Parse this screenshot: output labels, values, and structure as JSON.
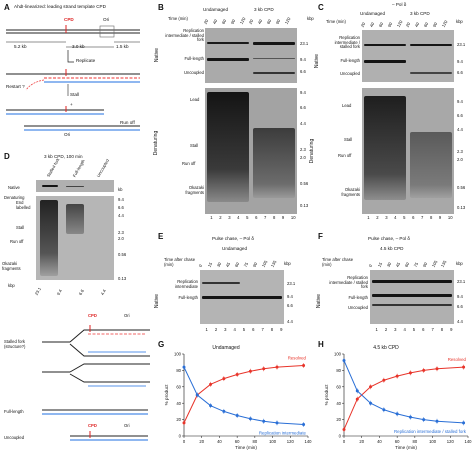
{
  "panel_a": {
    "letter": "A",
    "title": "AhdI-linearized: leading strand template CPD",
    "cpd": "CPD",
    "ori": "Ori",
    "sizes": [
      "5.2 kb",
      "3.0 kb",
      "1.5 kb"
    ],
    "replicate": "Replicate",
    "restart": "Restart ?",
    "stall": "Stall",
    "plus": "+",
    "runoff": "Run off",
    "ori2": "Ori"
  },
  "panel_b": {
    "letter": "B",
    "groups": [
      "Undamaged",
      "3 kb CPD"
    ],
    "time_label": "Time (min)",
    "times": [
      "20",
      "40",
      "60",
      "90",
      "120",
      "20",
      "40",
      "60",
      "90",
      "120"
    ],
    "native_labels": [
      "Replication intermediate / stalled fork",
      "Full-length",
      "Uncoupled"
    ],
    "denat_labels": [
      "Lead",
      "Stall",
      "Run off",
      "Okazaki fragments"
    ],
    "kb_title": "kbp",
    "kb_native": [
      "23.1",
      "9.4",
      "6.6"
    ],
    "kb_denat": [
      "9.4",
      "6.6",
      "4.4",
      "2.3",
      "2.0",
      "0.56",
      "0.13"
    ],
    "side_native": "Native",
    "side_denat": "Denaturing",
    "lanes": [
      "1",
      "2",
      "3",
      "4",
      "5",
      "6",
      "7",
      "8",
      "9",
      "10"
    ]
  },
  "panel_c": {
    "letter": "C",
    "header": "– Pol δ",
    "groups": [
      "Undamaged",
      "3 kb CPD"
    ],
    "time_label": "Time (min)",
    "times": [
      "20",
      "40",
      "60",
      "90",
      "120",
      "20",
      "40",
      "60",
      "90",
      "120"
    ],
    "native_labels": [
      "Replication intermediate / stalled fork",
      "Full-length",
      "Uncoupled"
    ],
    "denat_labels": [
      "Lead",
      "Stall",
      "Run off",
      "Okazaki fragments"
    ],
    "kb_title": "kbp",
    "kb_native": [
      "23.1",
      "9.4",
      "6.6"
    ],
    "kb_denat": [
      "9.4",
      "6.6",
      "4.4",
      "2.3",
      "2.0",
      "0.56",
      "0.13"
    ],
    "side_native": "Native",
    "side_denat": "Denaturing",
    "lanes": [
      "1",
      "2",
      "3",
      "4",
      "5",
      "6",
      "7",
      "8",
      "9",
      "10"
    ]
  },
  "panel_d": {
    "letter": "D",
    "title": "3 kb CPD, 100 min",
    "cols": [
      "Stalled fork",
      "Full-length",
      "Uncoupled"
    ],
    "native": "Native",
    "denaturing": "Denaturing",
    "end_labelled": "End labelled",
    "labels": [
      "Stall",
      "Run off",
      "Okazaki fragments"
    ],
    "kb_title": "kb",
    "kb": [
      "9.4",
      "6.6",
      "4.4",
      "2.3",
      "2.0",
      "0.56",
      "0.13"
    ],
    "kbp_title": "kbp",
    "bottom_kb": [
      "23.1",
      "9.4",
      "6.6",
      "4.4"
    ]
  },
  "panel_d_schematic": {
    "stalled": "Stalled fork (structure?)",
    "full_length": "Full-length",
    "uncoupled": "Uncoupled",
    "cpd": "CPD",
    "ori": "Ori"
  },
  "panel_e": {
    "letter": "E",
    "header": "Pulse chase, – Pol δ",
    "group": "Undamaged",
    "time_label": "Time after chase (min)",
    "times": [
      "0",
      "15",
      "30",
      "45",
      "60",
      "75",
      "90",
      "105",
      "135"
    ],
    "labels": [
      "Replication intermediate",
      "Full-length"
    ],
    "kb_title": "kbp",
    "kb": [
      "23.1",
      "9.4",
      "6.6",
      "4.4"
    ],
    "side": "Native",
    "lanes": [
      "1",
      "2",
      "3",
      "4",
      "5",
      "6",
      "7",
      "8",
      "9"
    ]
  },
  "panel_f": {
    "letter": "F",
    "header": "Pulse chase, – Pol δ",
    "group": "4.5 kb CPD",
    "time_label": "Time after chase (min)",
    "times": [
      "0",
      "15",
      "30",
      "45",
      "60",
      "75",
      "90",
      "105",
      "135"
    ],
    "labels": [
      "Replication intermediate / stalled fork",
      "Full-length",
      "Uncoupled"
    ],
    "kb_title": "kbp",
    "kb": [
      "23.1",
      "9.4",
      "6.6",
      "4.4"
    ],
    "side": "Native",
    "lanes": [
      "1",
      "2",
      "3",
      "4",
      "5",
      "6",
      "7",
      "8",
      "9"
    ]
  },
  "chart_data": [
    {
      "type": "line",
      "panel": "G",
      "title": "Undamaged",
      "xlabel": "Time (min)",
      "ylabel": "% product",
      "xlim": [
        0,
        140
      ],
      "ylim": [
        0,
        100
      ],
      "xticks": [
        0,
        20,
        40,
        60,
        80,
        100,
        120,
        140
      ],
      "yticks": [
        0,
        20,
        40,
        60,
        80,
        100
      ],
      "series": [
        {
          "name": "Resolved",
          "color": "#e8342a",
          "x": [
            0,
            15,
            30,
            45,
            60,
            75,
            90,
            105,
            135
          ],
          "y": [
            16,
            50,
            63,
            70,
            75,
            79,
            82,
            84,
            86
          ]
        },
        {
          "name": "Replication intermediate",
          "color": "#2a6fd6",
          "x": [
            0,
            15,
            30,
            45,
            60,
            75,
            90,
            105,
            135
          ],
          "y": [
            84,
            50,
            37,
            30,
            25,
            21,
            18,
            16,
            14
          ]
        }
      ]
    },
    {
      "type": "line",
      "panel": "H",
      "title": "4.5 kb CPD",
      "xlabel": "Time (min)",
      "ylabel": "% product",
      "xlim": [
        0,
        140
      ],
      "ylim": [
        0,
        100
      ],
      "xticks": [
        0,
        20,
        40,
        60,
        80,
        100,
        120,
        140
      ],
      "yticks": [
        0,
        20,
        40,
        60,
        80,
        100
      ],
      "series": [
        {
          "name": "Resolved",
          "color": "#e8342a",
          "x": [
            0,
            15,
            30,
            45,
            60,
            75,
            90,
            105,
            135
          ],
          "y": [
            8,
            45,
            60,
            68,
            73,
            77,
            80,
            82,
            84
          ]
        },
        {
          "name": "Replication intermediate / stalled fork",
          "color": "#2a6fd6",
          "x": [
            0,
            15,
            30,
            45,
            60,
            75,
            90,
            105,
            135
          ],
          "y": [
            92,
            55,
            40,
            32,
            27,
            23,
            20,
            18,
            16
          ]
        }
      ]
    }
  ]
}
